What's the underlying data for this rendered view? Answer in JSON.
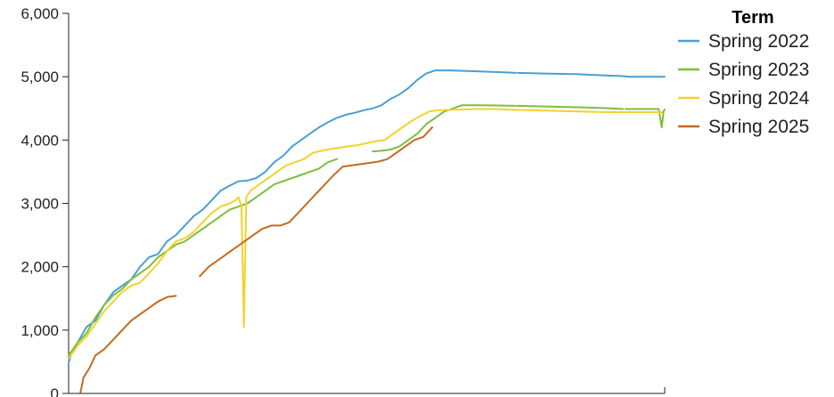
{
  "chart_data": {
    "type": "line",
    "title": "",
    "xlabel": "",
    "ylabel": "",
    "ylim": [
      0,
      6000
    ],
    "y_ticks": [
      "0",
      "1,000",
      "2,000",
      "3,000",
      "4,000",
      "5,000",
      "6,000"
    ],
    "y_tick_values": [
      0,
      1000,
      2000,
      3000,
      4000,
      5000,
      6000
    ],
    "x_tick_labels": [],
    "xlim": [
      0,
      100
    ],
    "grid": false,
    "legend": {
      "title": "Term",
      "position": "top-right"
    },
    "series": [
      {
        "name": "Spring 2022",
        "color": "#4a9fd3",
        "segments": [
          [
            [
              0,
              480
            ],
            [
              0.5,
              650
            ],
            [
              1.5,
              800
            ],
            [
              3,
              1050
            ],
            [
              4.5,
              1150
            ],
            [
              6,
              1400
            ],
            [
              7.5,
              1600
            ],
            [
              9,
              1700
            ],
            [
              10.5,
              1800
            ],
            [
              12,
              2000
            ],
            [
              13.5,
              2150
            ],
            [
              15,
              2200
            ],
            [
              16.5,
              2400
            ],
            [
              18,
              2500
            ],
            [
              19.5,
              2650
            ],
            [
              21,
              2800
            ],
            [
              22.5,
              2900
            ],
            [
              24,
              3050
            ],
            [
              25.5,
              3200
            ],
            [
              27,
              3280
            ],
            [
              28.5,
              3350
            ],
            [
              30,
              3360
            ],
            [
              31.5,
              3400
            ],
            [
              33,
              3500
            ],
            [
              34.5,
              3650
            ],
            [
              36,
              3750
            ],
            [
              37.5,
              3900
            ],
            [
              39,
              4000
            ],
            [
              40.5,
              4100
            ],
            [
              42,
              4200
            ],
            [
              43.5,
              4280
            ],
            [
              45,
              4350
            ],
            [
              46.5,
              4400
            ],
            [
              48,
              4430
            ],
            [
              49.5,
              4470
            ],
            [
              51,
              4500
            ],
            [
              52.5,
              4550
            ],
            [
              54,
              4650
            ],
            [
              55.5,
              4720
            ],
            [
              57,
              4820
            ],
            [
              58.5,
              4950
            ],
            [
              60,
              5050
            ],
            [
              61.5,
              5100
            ],
            [
              64,
              5100
            ],
            [
              67,
              5090
            ],
            [
              70,
              5080
            ],
            [
              73,
              5070
            ],
            [
              75,
              5060
            ]
          ],
          [
            [
              75.3,
              5060
            ],
            [
              80,
              5050
            ],
            [
              85,
              5040
            ],
            [
              90,
              5020
            ],
            [
              93,
              5010
            ],
            [
              94,
              5000
            ],
            [
              98,
              5000
            ],
            [
              100,
              5000
            ]
          ]
        ]
      },
      {
        "name": "Spring 2023",
        "color": "#7cbf3c",
        "segments": [
          [
            [
              0,
              600
            ],
            [
              1.5,
              800
            ],
            [
              3,
              950
            ],
            [
              4.5,
              1200
            ],
            [
              6,
              1400
            ],
            [
              7.5,
              1550
            ],
            [
              9,
              1650
            ],
            [
              10.5,
              1800
            ],
            [
              12,
              1900
            ],
            [
              13.5,
              2000
            ],
            [
              15,
              2150
            ],
            [
              16.5,
              2250
            ],
            [
              18,
              2350
            ],
            [
              19.5,
              2400
            ],
            [
              21,
              2500
            ],
            [
              22.5,
              2600
            ],
            [
              24,
              2700
            ],
            [
              25.5,
              2800
            ],
            [
              27,
              2900
            ],
            [
              28.5,
              2950
            ],
            [
              30,
              3000
            ],
            [
              31.5,
              3100
            ],
            [
              33,
              3200
            ],
            [
              34.5,
              3300
            ],
            [
              36,
              3350
            ],
            [
              37.5,
              3400
            ],
            [
              39,
              3450
            ],
            [
              40.5,
              3500
            ],
            [
              42,
              3550
            ],
            [
              43.5,
              3650
            ],
            [
              45,
              3700
            ]
          ],
          [
            [
              51,
              3820
            ],
            [
              52.5,
              3830
            ],
            [
              54,
              3850
            ],
            [
              55.5,
              3900
            ],
            [
              57,
              4000
            ],
            [
              58.5,
              4100
            ],
            [
              60,
              4250
            ],
            [
              61.5,
              4350
            ],
            [
              63,
              4450
            ],
            [
              64.5,
              4500
            ],
            [
              66,
              4550
            ],
            [
              69,
              4550
            ],
            [
              72,
              4545
            ],
            [
              75,
              4540
            ]
          ],
          [
            [
              75.3,
              4540
            ],
            [
              80,
              4530
            ],
            [
              84,
              4520
            ],
            [
              88,
              4510
            ],
            [
              91,
              4500
            ],
            [
              93,
              4490
            ]
          ],
          [
            [
              93.4,
              4490
            ],
            [
              96,
              4490
            ],
            [
              99,
              4490
            ],
            [
              99.5,
              4200
            ],
            [
              99.8,
              4450
            ],
            [
              100,
              4480
            ]
          ]
        ]
      },
      {
        "name": "Spring 2024",
        "color": "#f2d22e",
        "segments": [
          [
            [
              0,
              550
            ],
            [
              1.5,
              750
            ],
            [
              3,
              900
            ],
            [
              4.5,
              1100
            ],
            [
              6,
              1300
            ],
            [
              7.5,
              1450
            ],
            [
              9,
              1600
            ],
            [
              10.5,
              1700
            ],
            [
              12,
              1750
            ],
            [
              13.5,
              1900
            ],
            [
              15,
              2050
            ],
            [
              16.5,
              2250
            ],
            [
              18,
              2400
            ],
            [
              19.5,
              2450
            ],
            [
              21,
              2550
            ],
            [
              22.5,
              2700
            ],
            [
              24,
              2850
            ],
            [
              25.5,
              2950
            ],
            [
              27,
              3000
            ],
            [
              28,
              3050
            ],
            [
              28.5,
              3100
            ],
            [
              29,
              2950
            ],
            [
              29.4,
              1050
            ],
            [
              29.8,
              3100
            ],
            [
              30.5,
              3200
            ],
            [
              32,
              3300
            ],
            [
              33.5,
              3400
            ],
            [
              35,
              3500
            ],
            [
              36.5,
              3600
            ],
            [
              38,
              3650
            ],
            [
              39.5,
              3700
            ],
            [
              41,
              3800
            ],
            [
              42.5,
              3830
            ],
            [
              44,
              3860
            ],
            [
              45.5,
              3880
            ],
            [
              47,
              3900
            ],
            [
              48.5,
              3920
            ],
            [
              50,
              3950
            ],
            [
              51.5,
              3980
            ],
            [
              53,
              4000
            ],
            [
              54.5,
              4100
            ],
            [
              56,
              4200
            ],
            [
              57.5,
              4300
            ],
            [
              59,
              4380
            ],
            [
              60.5,
              4450
            ],
            [
              62,
              4470
            ],
            [
              65,
              4480
            ],
            [
              68,
              4490
            ],
            [
              71,
              4490
            ],
            [
              74,
              4480
            ],
            [
              78,
              4470
            ],
            [
              82,
              4460
            ],
            [
              86,
              4450
            ],
            [
              90,
              4440
            ],
            [
              94,
              4440
            ],
            [
              98,
              4440
            ],
            [
              99.5,
              4440
            ]
          ]
        ]
      },
      {
        "name": "Spring 2025",
        "color": "#c8691e",
        "segments": [
          [
            [
              2,
              20
            ],
            [
              2.5,
              250
            ],
            [
              3.5,
              400
            ],
            [
              4.5,
              600
            ],
            [
              6,
              700
            ],
            [
              7.5,
              850
            ],
            [
              9,
              1000
            ],
            [
              10.5,
              1150
            ],
            [
              12,
              1250
            ],
            [
              13.5,
              1350
            ],
            [
              15,
              1450
            ],
            [
              16.5,
              1520
            ],
            [
              18,
              1540
            ]
          ],
          [
            [
              22,
              1850
            ],
            [
              23.5,
              2000
            ],
            [
              25,
              2100
            ],
            [
              26.5,
              2200
            ],
            [
              28,
              2300
            ],
            [
              29.5,
              2400
            ],
            [
              31,
              2500
            ],
            [
              32.5,
              2600
            ],
            [
              34,
              2650
            ],
            [
              35.5,
              2650
            ],
            [
              37,
              2700
            ],
            [
              38.5,
              2850
            ],
            [
              40,
              3000
            ],
            [
              41.5,
              3150
            ],
            [
              43,
              3300
            ],
            [
              44.5,
              3450
            ],
            [
              46,
              3580
            ],
            [
              47.5,
              3600
            ],
            [
              49,
              3620
            ],
            [
              50.5,
              3640
            ],
            [
              52,
              3660
            ],
            [
              53.5,
              3700
            ],
            [
              55,
              3800
            ],
            [
              56.5,
              3900
            ],
            [
              58,
              4000
            ],
            [
              59.5,
              4050
            ],
            [
              61,
              4200
            ]
          ]
        ]
      }
    ]
  }
}
